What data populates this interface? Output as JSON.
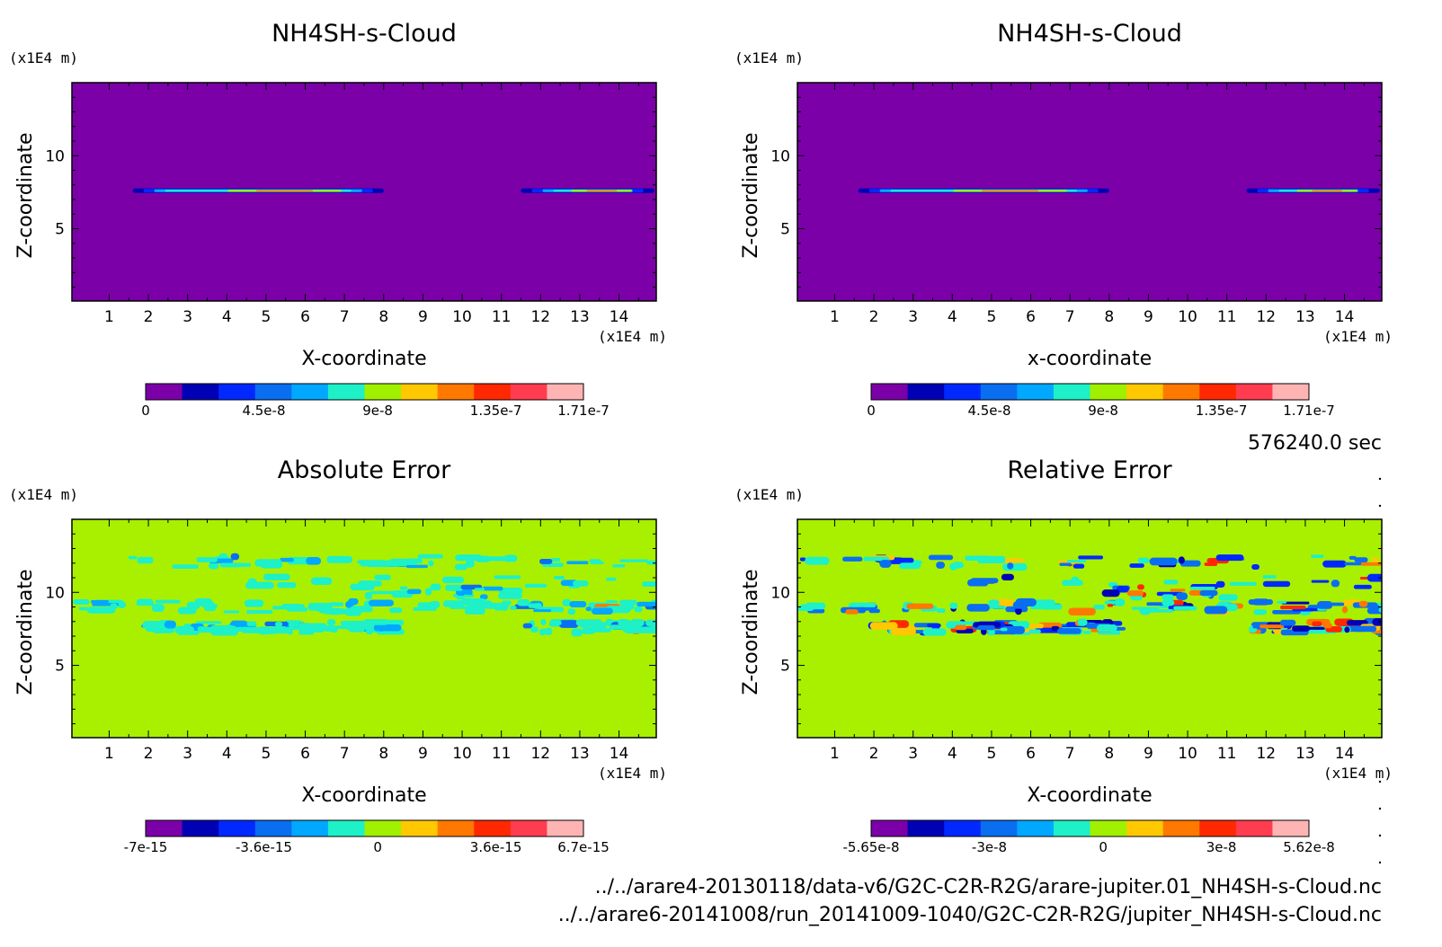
{
  "page": {
    "time_label": "576240.0 sec",
    "files": [
      "../../arare4-20130118/data-v6/G2C-C2R-R2G/arare-jupiter.01_NH4SH-s-Cloud.nc",
      "../../arare6-20141008/run_20141009-1040/G2C-C2R-R2G/jupiter_NH4SH-s-Cloud.nc"
    ]
  },
  "chart_data": [
    {
      "type": "heatmap",
      "title": "NH4SH-s-Cloud",
      "xlabel": "X-coordinate",
      "ylabel": "Z-coordinate",
      "x_unit": "(x1E4 m)",
      "y_unit": "(x1E4 m)",
      "xlim": [
        0.05,
        14.95
      ],
      "ylim": [
        0.05,
        15
      ],
      "x_ticks": [
        "1",
        "2",
        "3",
        "4",
        "5",
        "6",
        "7",
        "8",
        "9",
        "10",
        "11",
        "12",
        "13",
        "14"
      ],
      "y_ticks": [
        "5",
        "10"
      ],
      "background_color": "#7B00A8",
      "colorbar": {
        "colors": [
          "#7B00A8",
          "#0000B4",
          "#0028FF",
          "#0A6EF0",
          "#00A8FF",
          "#1EF0C8",
          "#A0F000",
          "#FFC800",
          "#FF7800",
          "#FF2800",
          "#FF3C50",
          "#FFB4B4"
        ],
        "labels": [
          "0",
          "4.5e-8",
          "9e-8",
          "1.35e-7",
          "1.71e-7"
        ]
      },
      "features": [
        {
          "type": "band",
          "x": [
            1.6,
            8.0
          ],
          "z": 7.6
        },
        {
          "type": "band",
          "x": [
            11.5,
            14.9
          ],
          "z": 7.6
        }
      ]
    },
    {
      "type": "heatmap",
      "title": "NH4SH-s-Cloud",
      "xlabel": "x-coordinate",
      "ylabel": "Z-coordinate",
      "x_unit": "(x1E4 m)",
      "y_unit": "(x1E4 m)",
      "xlim": [
        0.05,
        14.95
      ],
      "ylim": [
        0.05,
        15
      ],
      "x_ticks": [
        "1",
        "2",
        "3",
        "4",
        "5",
        "6",
        "7",
        "8",
        "9",
        "10",
        "11",
        "12",
        "13",
        "14"
      ],
      "y_ticks": [
        "5",
        "10"
      ],
      "background_color": "#7B00A8",
      "colorbar": {
        "colors": [
          "#7B00A8",
          "#0000B4",
          "#0028FF",
          "#0A6EF0",
          "#00A8FF",
          "#1EF0C8",
          "#A0F000",
          "#FFC800",
          "#FF7800",
          "#FF2800",
          "#FF3C50",
          "#FFB4B4"
        ],
        "labels": [
          "0",
          "4.5e-8",
          "9e-8",
          "1.35e-7",
          "1.71e-7"
        ]
      },
      "features": [
        {
          "type": "band",
          "x": [
            1.6,
            8.0
          ],
          "z": 7.6
        },
        {
          "type": "band",
          "x": [
            11.5,
            14.9
          ],
          "z": 7.6
        }
      ]
    },
    {
      "type": "heatmap",
      "title": "Absolute Error",
      "xlabel": "X-coordinate",
      "ylabel": "Z-coordinate",
      "x_unit": "(x1E4 m)",
      "y_unit": "(x1E4 m)",
      "xlim": [
        0.05,
        14.95
      ],
      "ylim": [
        0.05,
        15
      ],
      "x_ticks": [
        "1",
        "2",
        "3",
        "4",
        "5",
        "6",
        "7",
        "8",
        "9",
        "10",
        "11",
        "12",
        "13",
        "14"
      ],
      "y_ticks": [
        "5",
        "10"
      ],
      "background_color": "#A8F000",
      "colorbar": {
        "colors": [
          "#7B00A8",
          "#0000B4",
          "#0028FF",
          "#0A6EF0",
          "#00A8FF",
          "#1EF0C8",
          "#A0F000",
          "#FFC800",
          "#FF7800",
          "#FF2800",
          "#FF3C50",
          "#FFB4B4"
        ],
        "labels": [
          "-7e-15",
          "-3.6e-15",
          "0",
          "3.6e-15",
          "6.7e-15"
        ]
      },
      "features": [
        {
          "type": "noise",
          "z": 12.1,
          "x": [
            0.05,
            14.95
          ],
          "density": "medium"
        },
        {
          "type": "noise",
          "z": 10.7,
          "x": [
            4.0,
            14.9
          ],
          "density": "low"
        },
        {
          "type": "noise",
          "z": 10.0,
          "x": [
            7.5,
            11.0
          ],
          "density": "low"
        },
        {
          "type": "noise",
          "z": 9.0,
          "x": [
            0.05,
            14.95
          ],
          "density": "high"
        },
        {
          "type": "noise",
          "z": 7.6,
          "x": [
            1.8,
            8.0
          ],
          "density": "high"
        },
        {
          "type": "noise",
          "z": 7.6,
          "x": [
            11.5,
            14.9
          ],
          "density": "medium"
        }
      ]
    },
    {
      "type": "heatmap",
      "title": "Relative Error",
      "xlabel": "X-coordinate",
      "ylabel": "Z-coordinate",
      "x_unit": "(x1E4 m)",
      "y_unit": "(x1E4 m)",
      "xlim": [
        0.05,
        14.95
      ],
      "ylim": [
        0.05,
        15
      ],
      "x_ticks": [
        "1",
        "2",
        "3",
        "4",
        "5",
        "6",
        "7",
        "8",
        "9",
        "10",
        "11",
        "12",
        "13",
        "14"
      ],
      "y_ticks": [
        "5",
        "10"
      ],
      "background_color": "#A8F000",
      "colorbar": {
        "colors": [
          "#7B00A8",
          "#0000B4",
          "#0028FF",
          "#0A6EF0",
          "#00A8FF",
          "#1EF0C8",
          "#A0F000",
          "#FFC800",
          "#FF7800",
          "#FF2800",
          "#FF3C50",
          "#FFB4B4"
        ],
        "labels": [
          "-5.65e-8",
          "-3e-8",
          "0",
          "3e-8",
          "5.62e-8"
        ]
      },
      "features": [
        {
          "type": "noise",
          "z": 12.1,
          "x": [
            0.05,
            14.95
          ],
          "density": "medium"
        },
        {
          "type": "noise",
          "z": 10.7,
          "x": [
            4.0,
            14.9
          ],
          "density": "low"
        },
        {
          "type": "noise",
          "z": 10.0,
          "x": [
            7.5,
            11.0
          ],
          "density": "low"
        },
        {
          "type": "noise",
          "z": 9.0,
          "x": [
            0.05,
            14.95
          ],
          "density": "high"
        },
        {
          "type": "noise",
          "z": 7.6,
          "x": [
            1.8,
            8.0
          ],
          "density": "high"
        },
        {
          "type": "noise",
          "z": 7.6,
          "x": [
            11.5,
            14.9
          ],
          "density": "medium"
        }
      ]
    }
  ]
}
